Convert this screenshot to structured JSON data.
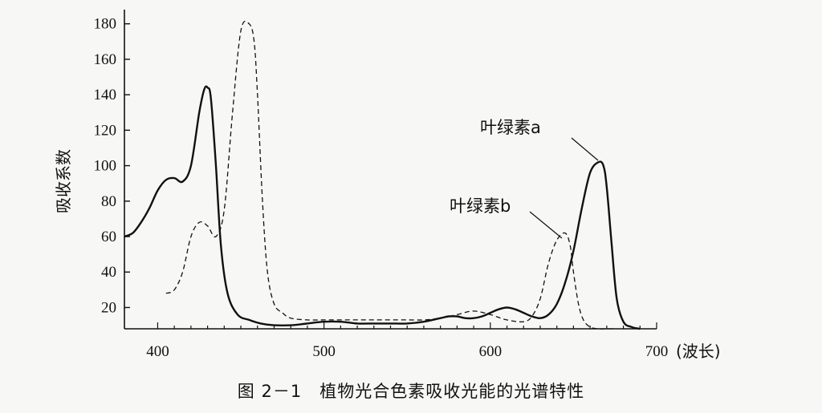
{
  "chart_data": {
    "type": "line",
    "xlabel": "(波长)",
    "ylabel": "吸收系数",
    "xlim": [
      380,
      700
    ],
    "ylim": [
      8,
      188
    ],
    "x_ticks": [
      400,
      500,
      600,
      700
    ],
    "y_ticks": [
      20,
      40,
      60,
      80,
      100,
      120,
      140,
      160,
      180
    ],
    "grid": false,
    "series": [
      {
        "name": "叶绿素a",
        "style": "solid",
        "x": [
          380,
          385,
          390,
          395,
          400,
          405,
          410,
          415,
          420,
          425,
          428,
          430,
          432,
          435,
          438,
          442,
          448,
          455,
          462,
          470,
          480,
          490,
          500,
          510,
          520,
          530,
          540,
          550,
          560,
          570,
          575,
          580,
          585,
          590,
          595,
          600,
          605,
          610,
          615,
          620,
          625,
          630,
          635,
          640,
          645,
          650,
          655,
          660,
          665,
          668,
          670,
          673,
          676,
          680,
          685,
          690
        ],
        "values": [
          60,
          62,
          68,
          76,
          86,
          92,
          93,
          91,
          100,
          130,
          143,
          144,
          138,
          100,
          55,
          28,
          16,
          13,
          11,
          10,
          10,
          11,
          12,
          12,
          11,
          11,
          11,
          11,
          12,
          14,
          15,
          15,
          14,
          14,
          15,
          17,
          19,
          20,
          19,
          17,
          15,
          14,
          16,
          22,
          34,
          52,
          76,
          96,
          102,
          100,
          88,
          55,
          25,
          12,
          9,
          8
        ]
      },
      {
        "name": "叶绿素b",
        "style": "dashed",
        "x": [
          405,
          410,
          415,
          420,
          425,
          430,
          435,
          440,
          445,
          450,
          455,
          458,
          460,
          463,
          466,
          470,
          475,
          480,
          490,
          500,
          510,
          520,
          530,
          540,
          550,
          560,
          570,
          580,
          590,
          600,
          610,
          620,
          625,
          630,
          635,
          640,
          645,
          648,
          650,
          653,
          656,
          660,
          665,
          670,
          675
        ],
        "values": [
          28,
          30,
          40,
          60,
          68,
          66,
          60,
          75,
          130,
          176,
          180,
          170,
          140,
          80,
          40,
          22,
          17,
          14,
          13,
          13,
          13,
          13,
          13,
          13,
          13,
          13,
          14,
          16,
          18,
          16,
          13,
          12,
          15,
          25,
          45,
          58,
          62,
          55,
          40,
          22,
          13,
          9,
          8,
          8,
          8
        ]
      }
    ],
    "annotations": [
      {
        "text": "叶绿素a",
        "target_series": 0
      },
      {
        "text": "叶绿素b",
        "target_series": 1
      }
    ],
    "caption": "图 2－1　植物光合色素吸收光能的光谱特性"
  }
}
